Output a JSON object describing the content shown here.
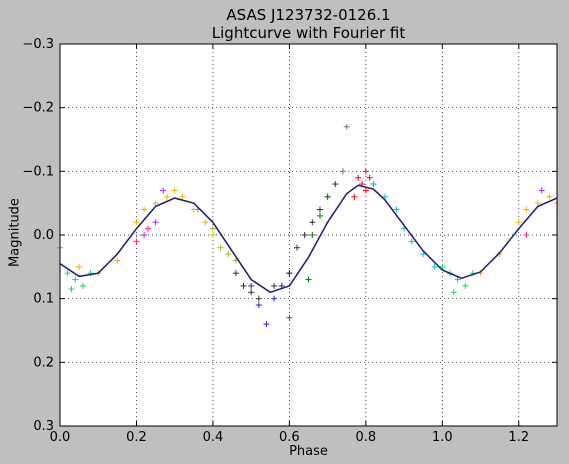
{
  "chart_data": {
    "type": "scatter",
    "title": "ASAS J123732-0126.1",
    "subtitle": "Lightcurve with Fourier fit",
    "xlabel": "Phase",
    "ylabel": "Magnitude",
    "xlim": [
      0.0,
      1.3
    ],
    "ylim": [
      0.3,
      -0.3
    ],
    "y_inverted": true,
    "grid": true,
    "xticks": [
      "0.0",
      "0.2",
      "0.4",
      "0.6",
      "0.8",
      "1.0",
      "1.2"
    ],
    "yticks": [
      "−0.3",
      "−0.2",
      "−0.1",
      "0.0",
      "0.1",
      "0.2",
      "0.3"
    ],
    "fourier_fit": {
      "color": "#1a1a7a",
      "points": [
        [
          0.0,
          0.045
        ],
        [
          0.05,
          0.065
        ],
        [
          0.1,
          0.06
        ],
        [
          0.15,
          0.03
        ],
        [
          0.2,
          -0.01
        ],
        [
          0.25,
          -0.045
        ],
        [
          0.3,
          -0.058
        ],
        [
          0.35,
          -0.05
        ],
        [
          0.4,
          -0.02
        ],
        [
          0.45,
          0.025
        ],
        [
          0.5,
          0.07
        ],
        [
          0.55,
          0.09
        ],
        [
          0.6,
          0.08
        ],
        [
          0.65,
          0.035
        ],
        [
          0.7,
          -0.02
        ],
        [
          0.75,
          -0.065
        ],
        [
          0.78,
          -0.078
        ],
        [
          0.82,
          -0.072
        ],
        [
          0.85,
          -0.055
        ],
        [
          0.9,
          -0.015
        ],
        [
          0.95,
          0.025
        ],
        [
          1.0,
          0.055
        ],
        [
          1.05,
          0.068
        ],
        [
          1.1,
          0.058
        ],
        [
          1.15,
          0.028
        ],
        [
          1.2,
          -0.01
        ],
        [
          1.25,
          -0.045
        ],
        [
          1.3,
          -0.058
        ]
      ]
    },
    "series": [
      {
        "color": "#00e060",
        "x": [
          0.0,
          0.02,
          0.04,
          0.06,
          0.08,
          0.03,
          1.0,
          1.02,
          1.04,
          1.06,
          1.08,
          1.03
        ],
        "y": [
          0.02,
          0.06,
          0.07,
          0.08,
          0.06,
          0.085,
          0.05,
          0.06,
          0.07,
          0.08,
          0.06,
          0.09
        ]
      },
      {
        "color": "#f0b000",
        "x": [
          0.05,
          0.1,
          0.15,
          0.2,
          0.22,
          0.25,
          0.28,
          0.3,
          0.32,
          0.35,
          0.38,
          0.4,
          1.1,
          1.15,
          1.2,
          1.22,
          1.25,
          1.28,
          1.3
        ],
        "y": [
          0.05,
          0.06,
          0.04,
          -0.02,
          -0.04,
          -0.05,
          -0.06,
          -0.07,
          -0.06,
          -0.04,
          -0.02,
          0.0,
          0.06,
          0.03,
          -0.02,
          -0.04,
          -0.05,
          -0.06,
          -0.05
        ]
      },
      {
        "color": "#b0b000",
        "x": [
          0.36,
          0.4,
          0.42,
          0.44,
          0.46
        ],
        "y": [
          -0.04,
          -0.01,
          0.02,
          0.03,
          0.04
        ]
      },
      {
        "color": "#b020ff",
        "x": [
          0.22,
          0.25,
          0.27,
          1.26
        ],
        "y": [
          0.0,
          -0.02,
          -0.07,
          -0.07
        ]
      },
      {
        "color": "#ff2080",
        "x": [
          0.2,
          0.23,
          1.22
        ],
        "y": [
          0.01,
          -0.01,
          0.0
        ]
      },
      {
        "color": "#303030",
        "x": [
          0.46,
          0.48,
          0.5,
          0.52,
          0.56,
          0.6,
          0.62,
          0.64,
          0.66,
          0.68,
          0.7,
          0.72
        ],
        "y": [
          0.06,
          0.08,
          0.09,
          0.1,
          0.08,
          0.06,
          0.02,
          0.0,
          -0.02,
          -0.04,
          -0.06,
          -0.08
        ]
      },
      {
        "color": "#2020c0",
        "x": [
          0.5,
          0.52,
          0.54,
          0.56,
          0.58,
          0.6
        ],
        "y": [
          0.08,
          0.11,
          0.14,
          0.1,
          0.08,
          0.06
        ]
      },
      {
        "color": "#008000",
        "x": [
          0.6,
          0.65,
          0.66,
          0.68,
          0.7
        ],
        "y": [
          0.13,
          0.07,
          0.0,
          -0.03,
          -0.06
        ]
      },
      {
        "color": "#707070",
        "x": [
          0.74,
          0.75
        ],
        "y": [
          -0.1,
          -0.17
        ]
      },
      {
        "color": "#ff0000",
        "x": [
          0.77,
          0.79,
          0.8,
          0.81,
          0.82,
          0.78,
          0.8
        ],
        "y": [
          -0.06,
          -0.08,
          -0.07,
          -0.09,
          -0.08,
          -0.09,
          -0.1
        ]
      },
      {
        "color": "#00c8c8",
        "x": [
          0.82,
          0.85,
          0.88,
          0.9,
          0.92,
          0.95,
          0.98
        ],
        "y": [
          -0.08,
          -0.06,
          -0.04,
          -0.01,
          0.01,
          0.03,
          0.05
        ]
      }
    ]
  }
}
